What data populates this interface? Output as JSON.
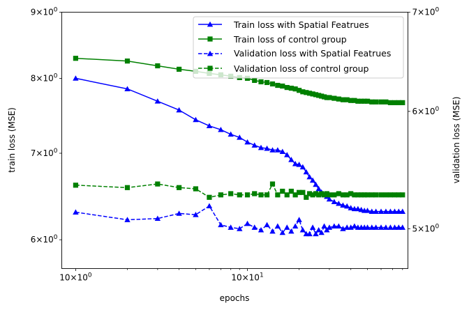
{
  "chart_data": {
    "type": "line",
    "xlabel": "epochs",
    "ylabel_left": "train loss (MSE)",
    "ylabel_right": "validation loss (MSE)",
    "x_scale": "log",
    "y_scale": "log",
    "xlim": [
      0.83,
      86
    ],
    "ylim_left": [
      5.7,
      9.0
    ],
    "ylim_right": [
      4.7,
      7.0
    ],
    "x_ticks": [
      {
        "value": 1,
        "base": "10",
        "exp": "0"
      },
      {
        "value": 10,
        "base": "10",
        "exp": "1"
      }
    ],
    "y_ticks_left": [
      {
        "value": 6,
        "mant": "6",
        "exp": "0"
      },
      {
        "value": 7,
        "mant": "7",
        "exp": "0"
      },
      {
        "value": 8,
        "mant": "8",
        "exp": "0"
      },
      {
        "value": 9,
        "mant": "9",
        "exp": "0"
      }
    ],
    "y_ticks_right": [
      {
        "value": 5,
        "mant": "5",
        "exp": "0"
      },
      {
        "value": 6,
        "mant": "6",
        "exp": "0"
      },
      {
        "value": 7,
        "mant": "7",
        "exp": "0"
      }
    ],
    "grid": false,
    "legend_position": "top-right",
    "series": [
      {
        "name": "Train loss with Spatial Featrues",
        "axis": "left",
        "color": "#0000ff",
        "line": "solid",
        "marker": "triangle",
        "x": [
          1,
          2,
          3,
          4,
          5,
          6,
          7,
          8,
          9,
          10,
          11,
          12,
          13,
          14,
          15,
          16,
          17,
          18,
          19,
          20,
          21,
          22,
          23,
          24,
          25,
          26,
          27,
          28,
          29,
          30,
          32,
          34,
          36,
          38,
          40,
          42,
          44,
          46,
          48,
          50,
          53,
          56,
          60,
          64,
          68,
          72,
          76,
          80
        ],
        "values": [
          8.0,
          7.85,
          7.68,
          7.56,
          7.43,
          7.35,
          7.3,
          7.24,
          7.2,
          7.14,
          7.1,
          7.07,
          7.06,
          7.04,
          7.04,
          7.02,
          6.98,
          6.92,
          6.87,
          6.86,
          6.83,
          6.77,
          6.71,
          6.67,
          6.62,
          6.57,
          6.53,
          6.5,
          6.48,
          6.45,
          6.42,
          6.4,
          6.38,
          6.37,
          6.35,
          6.34,
          6.34,
          6.33,
          6.32,
          6.32,
          6.31,
          6.31,
          6.31,
          6.31,
          6.31,
          6.31,
          6.31,
          6.31
        ]
      },
      {
        "name": "Train loss of control group",
        "axis": "left",
        "color": "#008000",
        "line": "solid",
        "marker": "square",
        "x": [
          1,
          2,
          3,
          4,
          5,
          6,
          7,
          8,
          9,
          10,
          11,
          12,
          13,
          14,
          15,
          16,
          17,
          18,
          19,
          20,
          21,
          22,
          23,
          24,
          25,
          26,
          27,
          28,
          29,
          30,
          32,
          34,
          36,
          38,
          40,
          42,
          44,
          46,
          48,
          50,
          53,
          56,
          60,
          64,
          68,
          72,
          76,
          80
        ],
        "values": [
          8.29,
          8.25,
          8.18,
          8.13,
          8.1,
          8.07,
          8.05,
          8.03,
          8.01,
          8.0,
          7.97,
          7.95,
          7.94,
          7.92,
          7.9,
          7.89,
          7.87,
          7.86,
          7.85,
          7.83,
          7.81,
          7.8,
          7.79,
          7.78,
          7.77,
          7.76,
          7.75,
          7.74,
          7.73,
          7.73,
          7.72,
          7.71,
          7.7,
          7.7,
          7.69,
          7.69,
          7.68,
          7.68,
          7.68,
          7.68,
          7.67,
          7.67,
          7.67,
          7.67,
          7.66,
          7.66,
          7.66,
          7.66
        ]
      },
      {
        "name": "Validation loss with Spatial Featrues",
        "axis": "right",
        "color": "#0000ff",
        "line": "dashed",
        "marker": "triangle",
        "x": [
          1,
          2,
          3,
          4,
          5,
          6,
          7,
          8,
          9,
          10,
          11,
          12,
          13,
          14,
          15,
          16,
          17,
          18,
          19,
          20,
          21,
          22,
          23,
          24,
          25,
          26,
          27,
          28,
          29,
          30,
          32,
          34,
          36,
          38,
          40,
          42,
          44,
          46,
          48,
          50,
          53,
          56,
          60,
          64,
          68,
          72,
          76,
          80
        ],
        "values": [
          5.13,
          5.07,
          5.08,
          5.12,
          5.11,
          5.18,
          5.03,
          5.01,
          5.0,
          5.04,
          5.01,
          4.99,
          5.03,
          4.98,
          5.02,
          4.97,
          5.01,
          4.98,
          5.02,
          5.07,
          4.99,
          4.96,
          4.96,
          5.01,
          4.96,
          4.99,
          4.97,
          5.02,
          4.99,
          5.01,
          5.02,
          5.02,
          5.0,
          5.01,
          5.01,
          5.02,
          5.01,
          5.01,
          5.01,
          5.01,
          5.01,
          5.01,
          5.01,
          5.01,
          5.01,
          5.01,
          5.01,
          5.01
        ]
      },
      {
        "name": "Validation loss of control group",
        "axis": "right",
        "color": "#008000",
        "line": "dashed",
        "marker": "square",
        "x": [
          1,
          2,
          3,
          4,
          5,
          6,
          7,
          8,
          9,
          10,
          11,
          12,
          13,
          14,
          15,
          16,
          17,
          18,
          19,
          20,
          21,
          22,
          23,
          24,
          25,
          26,
          27,
          28,
          29,
          30,
          32,
          34,
          36,
          38,
          40,
          42,
          44,
          46,
          48,
          50,
          53,
          56,
          60,
          64,
          68,
          72,
          76,
          80
        ],
        "values": [
          5.35,
          5.33,
          5.36,
          5.33,
          5.32,
          5.25,
          5.27,
          5.28,
          5.27,
          5.27,
          5.28,
          5.27,
          5.27,
          5.36,
          5.27,
          5.3,
          5.27,
          5.3,
          5.27,
          5.29,
          5.29,
          5.25,
          5.28,
          5.27,
          5.28,
          5.27,
          5.28,
          5.27,
          5.28,
          5.27,
          5.27,
          5.28,
          5.27,
          5.27,
          5.28,
          5.27,
          5.27,
          5.27,
          5.27,
          5.27,
          5.27,
          5.27,
          5.27,
          5.27,
          5.27,
          5.27,
          5.27,
          5.27
        ]
      }
    ]
  }
}
